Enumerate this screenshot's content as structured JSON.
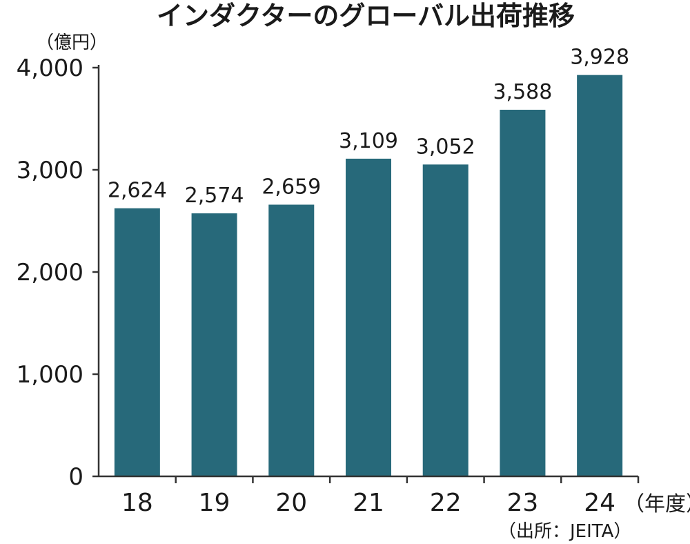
{
  "chart_data": {
    "type": "bar",
    "title": "インダクターのグローバル出荷推移",
    "ylabel": "（億円）",
    "xlabel": "（年度）",
    "source": "（出所：JEITA）",
    "categories": [
      "18",
      "19",
      "20",
      "21",
      "22",
      "23",
      "24"
    ],
    "values": [
      2624,
      2574,
      2659,
      3109,
      3052,
      3588,
      3928
    ],
    "value_labels": [
      "2,624",
      "2,574",
      "2,659",
      "3,109",
      "3,052",
      "3,588",
      "3,928"
    ],
    "ylim": [
      0,
      4000
    ],
    "yticks": [
      0,
      1000,
      2000,
      3000,
      4000
    ],
    "ytick_labels": [
      "0",
      "1,000",
      "2,000",
      "3,000",
      "4,000"
    ],
    "bar_color": "#27697a",
    "grid": false,
    "legend": "none"
  }
}
